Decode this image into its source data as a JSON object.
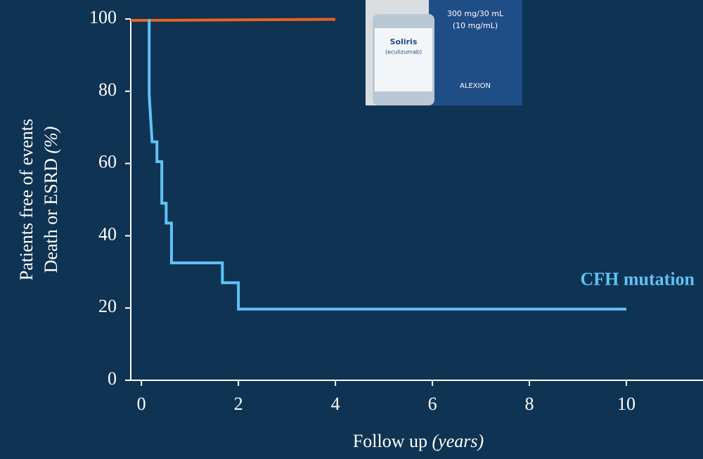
{
  "chart_data": {
    "type": "line",
    "ylabel": [
      "Patients free of events",
      "Death or ESRD"
    ],
    "ylabel_unit": "(%)",
    "xlabel": "Follow up",
    "xlabel_unit": "(years)",
    "xlim": [
      -0.22,
      11.58
    ],
    "ylim": [
      0,
      100
    ],
    "xticks": [
      0,
      2,
      4,
      6,
      8,
      10
    ],
    "yticks": [
      0,
      20,
      40,
      60,
      80,
      100
    ],
    "series": [
      {
        "color": "#e8641e",
        "x": [
          -0.22,
          4
        ],
        "values": [
          99.6,
          99.9
        ]
      },
      {
        "name": "CFH mutation",
        "color": "#5fc3f5",
        "x": [
          0.16,
          0.16,
          0.22,
          0.32,
          0.32,
          0.42,
          0.42,
          0.51,
          0.51,
          0.62,
          0.62,
          1.67,
          1.67,
          2,
          2,
          10
        ],
        "values": [
          100,
          79,
          66,
          66,
          60.5,
          60.5,
          49,
          49,
          43.5,
          43.5,
          32.5,
          32.5,
          27,
          27,
          19.7,
          19.7
        ]
      }
    ]
  },
  "inset": {
    "texts": [
      "300 mg/30 mL",
      "(10 mg/mL)",
      "Soliris",
      "(eculizumab)",
      "ALEXION"
    ]
  }
}
